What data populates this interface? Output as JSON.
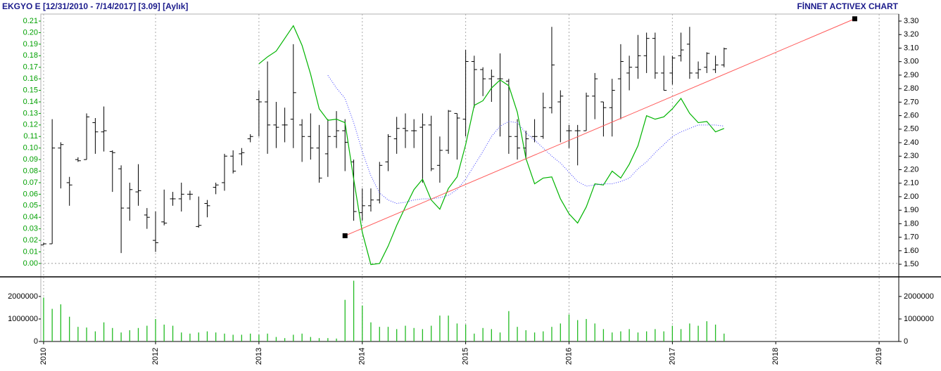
{
  "chart_data": [
    {
      "type": "ohlc",
      "title": "EKGYO E  [12/31/2010 - 7/14/2017]  [3.09]  [Aylık]",
      "watermark": "FİNNET ACTIVEX CHART",
      "bar_color": "#000000",
      "x": [
        2010.917,
        2011,
        2011.083,
        2011.167,
        2011.25,
        2011.333,
        2011.417,
        2011.5,
        2011.583,
        2011.667,
        2011.75,
        2011.833,
        2011.917,
        2012,
        2012.083,
        2012.167,
        2012.25,
        2012.333,
        2012.417,
        2012.5,
        2012.583,
        2012.667,
        2012.75,
        2012.833,
        2012.917,
        2013,
        2013.083,
        2013.167,
        2013.25,
        2013.333,
        2013.417,
        2013.5,
        2013.583,
        2013.667,
        2013.75,
        2013.833,
        2013.917,
        2014,
        2014.083,
        2014.167,
        2014.25,
        2014.333,
        2014.417,
        2014.5,
        2014.583,
        2014.667,
        2014.75,
        2014.833,
        2014.917,
        2015,
        2015.083,
        2015.167,
        2015.25,
        2015.333,
        2015.417,
        2015.5,
        2015.583,
        2015.667,
        2015.75,
        2015.833,
        2015.917,
        2016,
        2016.083,
        2016.167,
        2016.25,
        2016.333,
        2016.417,
        2016.5,
        2016.583,
        2016.667,
        2016.75,
        2016.833,
        2016.917,
        2017,
        2017.083,
        2017.167,
        2017.25,
        2017.333,
        2017.417,
        2017.5
      ],
      "open": [
        0.016,
        0.017,
        0.1,
        0.07,
        0.09,
        0.09,
        0.122,
        0.114,
        0.097,
        0.082,
        0.048,
        0.062,
        0.042,
        0.02,
        0.036,
        0.056,
        0.056,
        0.06,
        0.032,
        0.052,
        0.066,
        0.07,
        0.093,
        0.095,
        0.108,
        0.142,
        0.14,
        0.12,
        0.12,
        0.125,
        0.12,
        0.11,
        0.1,
        0.095,
        0.11,
        0.115,
        0.088,
        0.044,
        0.05,
        0.055,
        0.088,
        0.108,
        0.117,
        0.115,
        0.118,
        0.12,
        0.085,
        0.098,
        0.13,
        0.125,
        0.175,
        0.168,
        0.16,
        0.16,
        0.158,
        0.11,
        0.1,
        0.11,
        0.11,
        0.135,
        0.14,
        0.115,
        0.115,
        0.115,
        0.145,
        0.14,
        0.135,
        0.16,
        0.165,
        0.17,
        0.18,
        0.195,
        0.165,
        0.165,
        0.18,
        0.19,
        0.165,
        0.17,
        0.168,
        0.172
      ],
      "high": [
        0.018,
        0.125,
        0.105,
        0.075,
        0.092,
        0.13,
        0.126,
        0.136,
        0.098,
        0.085,
        0.07,
        0.086,
        0.048,
        0.045,
        0.064,
        0.062,
        0.07,
        0.063,
        0.058,
        0.055,
        0.07,
        0.095,
        0.098,
        0.1,
        0.112,
        0.15,
        0.175,
        0.14,
        0.135,
        0.19,
        0.125,
        0.13,
        0.12,
        0.125,
        0.132,
        0.125,
        0.09,
        0.065,
        0.065,
        0.088,
        0.112,
        0.127,
        0.13,
        0.125,
        0.13,
        0.128,
        0.11,
        0.133,
        0.13,
        0.185,
        0.18,
        0.17,
        0.168,
        0.182,
        0.16,
        0.125,
        0.115,
        0.125,
        0.148,
        0.205,
        0.15,
        0.12,
        0.12,
        0.148,
        0.165,
        0.14,
        0.16,
        0.19,
        0.18,
        0.198,
        0.2,
        0.2,
        0.18,
        0.18,
        0.2,
        0.205,
        0.175,
        0.183,
        0.18,
        0.187
      ],
      "low": [
        0.016,
        0.017,
        0.065,
        0.05,
        0.088,
        0.09,
        0.095,
        0.097,
        0.062,
        0.009,
        0.037,
        0.05,
        0.03,
        0.01,
        0.033,
        0.05,
        0.045,
        0.055,
        0.031,
        0.04,
        0.06,
        0.063,
        0.078,
        0.085,
        0.105,
        0.11,
        0.095,
        0.1,
        0.105,
        0.1,
        0.088,
        0.09,
        0.07,
        0.075,
        0.1,
        0.08,
        0.037,
        0.037,
        0.045,
        0.052,
        0.08,
        0.095,
        0.1,
        0.1,
        0.07,
        0.08,
        0.07,
        0.095,
        0.09,
        0.11,
        0.135,
        0.145,
        0.14,
        0.11,
        0.095,
        0.09,
        0.09,
        0.105,
        0.108,
        0.13,
        0.105,
        0.1,
        0.085,
        0.115,
        0.125,
        0.11,
        0.11,
        0.125,
        0.15,
        0.16,
        0.165,
        0.16,
        0.15,
        0.155,
        0.175,
        0.16,
        0.16,
        0.165,
        0.165,
        0.17
      ],
      "close": [
        0.017,
        0.1,
        0.103,
        0.068,
        0.089,
        0.127,
        0.114,
        0.115,
        0.096,
        0.048,
        0.064,
        0.063,
        0.04,
        0.018,
        0.035,
        0.056,
        0.06,
        0.06,
        0.033,
        0.05,
        0.068,
        0.093,
        0.08,
        0.096,
        0.11,
        0.14,
        0.12,
        0.118,
        0.12,
        0.148,
        0.11,
        0.1,
        0.074,
        0.11,
        0.115,
        0.105,
        0.045,
        0.05,
        0.055,
        0.085,
        0.11,
        0.117,
        0.115,
        0.115,
        0.12,
        0.082,
        0.098,
        0.132,
        0.126,
        0.175,
        0.168,
        0.16,
        0.162,
        0.16,
        0.11,
        0.1,
        0.108,
        0.11,
        0.135,
        0.172,
        0.145,
        0.115,
        0.115,
        0.145,
        0.16,
        0.135,
        0.15,
        0.175,
        0.17,
        0.18,
        0.195,
        0.165,
        0.15,
        0.178,
        0.185,
        0.165,
        0.168,
        0.182,
        0.172,
        0.186
      ],
      "lines": [
        {
          "color": "#00b400",
          "style": "solid",
          "values": [
            null,
            null,
            null,
            null,
            null,
            null,
            null,
            null,
            null,
            null,
            null,
            null,
            null,
            null,
            null,
            null,
            null,
            null,
            null,
            null,
            null,
            null,
            null,
            null,
            null,
            0.173,
            0.179,
            0.184,
            0.195,
            0.206,
            0.189,
            0.164,
            0.134,
            0.124,
            0.125,
            0.122,
            0.073,
            0.027,
            -0.001,
            0,
            0.015,
            0.033,
            0.049,
            0.064,
            0.073,
            0.055,
            0.047,
            0.065,
            0.075,
            0.103,
            0.137,
            0.141,
            0.152,
            0.159,
            0.154,
            0.131,
            0.091,
            0.069,
            0.074,
            0.075,
            0.056,
            0.043,
            0.035,
            0.049,
            0.069,
            0.068,
            0.08,
            0.074,
            0.086,
            0.102,
            0.128,
            0.125,
            0.127,
            0.134,
            0.143,
            0.13,
            0.122,
            0.123,
            0.114,
            0.117
          ]
        },
        {
          "color": "#3c3cff",
          "style": "dotted",
          "values": [
            null,
            null,
            null,
            null,
            null,
            null,
            null,
            null,
            null,
            null,
            null,
            null,
            null,
            null,
            null,
            null,
            null,
            null,
            null,
            null,
            null,
            null,
            null,
            null,
            null,
            null,
            null,
            null,
            null,
            null,
            null,
            null,
            null,
            0.163,
            0.152,
            0.143,
            0.122,
            0.097,
            0.076,
            0.061,
            0.055,
            0.052,
            0.053,
            0.055,
            0.056,
            0.056,
            0.057,
            0.059,
            0.064,
            0.073,
            0.085,
            0.097,
            0.11,
            0.119,
            0.123,
            0.122,
            0.113,
            0.107,
            0.1,
            0.093,
            0.087,
            0.079,
            0.071,
            0.067,
            0.068,
            0.069,
            0.069,
            0.071,
            0.074,
            0.082,
            0.088,
            0.096,
            0.103,
            0.11,
            0.114,
            0.117,
            0.12,
            0.12,
            0.12,
            0.119
          ]
        }
      ],
      "trendline": {
        "color": "#ff5a5a",
        "x": [
          2013.833,
          2018.764
        ],
        "values": [
          0.024,
          0.212
        ]
      },
      "xlim": [
        2010.89,
        2019.19
      ],
      "ylim": [
        -0.011,
        0.2161
      ],
      "yticks": [
        {
          "value": 0,
          "label": "0.00"
        },
        0.01,
        0.02,
        0.03,
        0.04,
        0.05,
        0.06,
        0.07,
        0.08,
        0.09,
        {
          "value": 0.1,
          "label": "0.10"
        },
        0.11,
        0.12,
        0.13,
        0.14,
        0.15,
        0.16,
        0.17,
        0.18,
        0.19,
        {
          "value": 0.2,
          "label": "0.20"
        },
        0.21
      ],
      "y2lim": [
        1.412,
        3.352
      ],
      "y2ticks": [
        {
          "value": 1.5,
          "label": "1.50"
        },
        {
          "value": 1.6,
          "label": "1.60"
        },
        {
          "value": 1.7,
          "label": "1.70"
        },
        {
          "value": 1.8,
          "label": "1.80"
        },
        {
          "value": 1.9,
          "label": "1.90"
        },
        {
          "value": 2.0,
          "label": "2.00"
        },
        {
          "value": 2.1,
          "label": "2.10"
        },
        {
          "value": 2.2,
          "label": "2.20"
        },
        {
          "value": 2.3,
          "label": "2.30"
        },
        {
          "value": 2.4,
          "label": "2.40"
        },
        {
          "value": 2.5,
          "label": "2.50"
        },
        {
          "value": 2.6,
          "label": "2.60"
        },
        {
          "value": 2.7,
          "label": "2.70"
        },
        {
          "value": 2.8,
          "label": "2.80"
        },
        {
          "value": 2.9,
          "label": "2.90"
        },
        {
          "value": 3.0,
          "label": "3.00"
        },
        {
          "value": 3.1,
          "label": "3.10"
        },
        {
          "value": 3.2,
          "label": "3.20"
        },
        {
          "value": 3.3,
          "label": "3.30"
        }
      ]
    },
    {
      "type": "bar",
      "color": "#22bb22",
      "x": [
        2010.917,
        2011,
        2011.083,
        2011.167,
        2011.25,
        2011.333,
        2011.417,
        2011.5,
        2011.583,
        2011.667,
        2011.75,
        2011.833,
        2011.917,
        2012,
        2012.083,
        2012.167,
        2012.25,
        2012.333,
        2012.417,
        2012.5,
        2012.583,
        2012.667,
        2012.75,
        2012.833,
        2012.917,
        2013,
        2013.083,
        2013.167,
        2013.25,
        2013.333,
        2013.417,
        2013.5,
        2013.583,
        2013.667,
        2013.75,
        2013.833,
        2013.917,
        2014,
        2014.083,
        2014.167,
        2014.25,
        2014.333,
        2014.417,
        2014.5,
        2014.583,
        2014.667,
        2014.75,
        2014.833,
        2014.917,
        2015,
        2015.083,
        2015.167,
        2015.25,
        2015.333,
        2015.417,
        2015.5,
        2015.583,
        2015.667,
        2015.75,
        2015.833,
        2015.917,
        2016,
        2016.083,
        2016.167,
        2016.25,
        2016.333,
        2016.417,
        2016.5,
        2016.583,
        2016.667,
        2016.75,
        2016.833,
        2016.917,
        2017,
        2017.083,
        2017.167,
        2017.25,
        2017.333,
        2017.417,
        2017.5
      ],
      "values": [
        1950000,
        1450000,
        1650000,
        1100000,
        650000,
        620000,
        450000,
        850000,
        600000,
        400000,
        500000,
        600000,
        700000,
        1000000,
        750000,
        700000,
        400000,
        350000,
        400000,
        450000,
        400000,
        350000,
        300000,
        300000,
        350000,
        300000,
        350000,
        200000,
        150000,
        300000,
        350000,
        200000,
        150000,
        150000,
        130000,
        1850000,
        2700000,
        1600000,
        850000,
        650000,
        650000,
        550000,
        700000,
        600000,
        550000,
        700000,
        1150000,
        1150000,
        800000,
        750000,
        350000,
        600000,
        550000,
        400000,
        1350000,
        650000,
        500000,
        400000,
        450000,
        650000,
        800000,
        1200000,
        950000,
        1000000,
        800000,
        550000,
        400000,
        450000,
        550000,
        400000,
        450000,
        550000,
        450000,
        700000,
        550000,
        800000,
        700000,
        900000,
        750000,
        350000
      ],
      "xlim": [
        2010.89,
        2019.19
      ],
      "xticks": [
        {
          "value": 2010.917,
          "label": "2010"
        },
        2012,
        2013,
        2014,
        2015,
        2016,
        2017,
        2018,
        2019
      ],
      "grid": true,
      "ylim": [
        0,
        2840000
      ],
      "yticks": [
        0,
        1000000,
        2000000
      ]
    }
  ]
}
